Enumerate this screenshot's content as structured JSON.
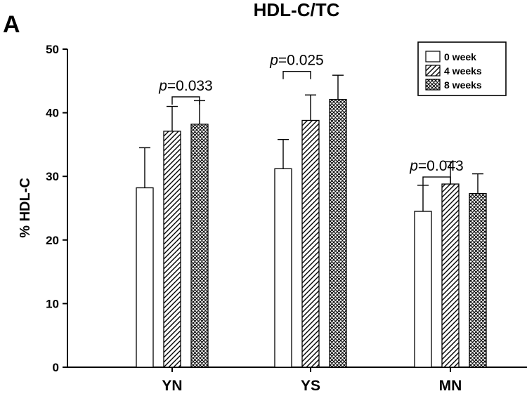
{
  "panel_label": "A",
  "chart_data": {
    "type": "bar",
    "title": "HDL-C/TC",
    "xlabel": "",
    "ylabel": "% HDL-C",
    "ylim": [
      0,
      50
    ],
    "yticks": [
      0,
      10,
      20,
      30,
      40,
      50
    ],
    "categories": [
      "YN",
      "YS",
      "MN"
    ],
    "series": [
      {
        "name": "0 week",
        "pattern": "white",
        "values": [
          28.2,
          31.2,
          24.5
        ],
        "errors": [
          6.3,
          4.6,
          4.1
        ]
      },
      {
        "name": "4 weeks",
        "pattern": "hatch",
        "values": [
          37.1,
          38.8,
          28.8
        ],
        "errors": [
          3.9,
          4.0,
          3.5
        ]
      },
      {
        "name": "8 weeks",
        "pattern": "crosshatch",
        "values": [
          38.2,
          42.1,
          27.3
        ],
        "errors": [
          3.7,
          3.8,
          3.1
        ]
      }
    ],
    "legend": {
      "position": "top-right"
    },
    "grid": false,
    "annotations": [
      {
        "category": "YN",
        "from_series": 1,
        "to_series": 2,
        "label_prefix": "p",
        "label_value": "=0.033",
        "level": 42.5
      },
      {
        "category": "YS",
        "from_series": 0,
        "to_series": 1,
        "label_prefix": "p",
        "label_value": "=0.025",
        "level": 46.5
      },
      {
        "category": "MN",
        "from_series": 0,
        "to_series": 1,
        "label_prefix": "p",
        "label_value": "=0.043",
        "level": 29.9
      }
    ]
  }
}
